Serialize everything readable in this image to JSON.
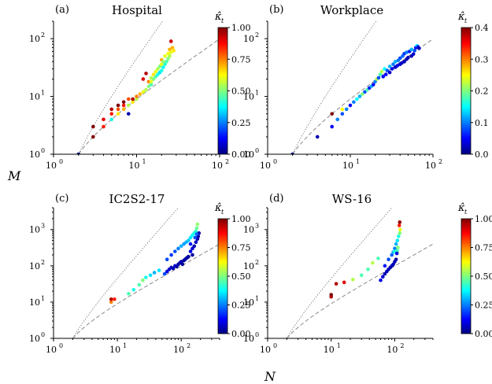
{
  "figure": {
    "xlabel": "N",
    "ylabel": "M",
    "colorbar_label": "κ̂",
    "colorbar_label_sub": "t",
    "colormap": [
      "#00007f",
      "#0000ff",
      "#007fff",
      "#00ffff",
      "#7fff7f",
      "#ffff00",
      "#ff7f00",
      "#ff0000",
      "#7f0000"
    ]
  },
  "chart_data": [
    {
      "type": "scatter",
      "panel": "(a)",
      "title": "Hospital",
      "xscale": "log",
      "yscale": "log",
      "xlim": [
        1,
        100
      ],
      "ylim": [
        1,
        200
      ],
      "x_ticks": [
        {
          "base": "10",
          "exp": "0",
          "v": 1
        },
        {
          "base": "10",
          "exp": "1",
          "v": 10
        },
        {
          "base": "10",
          "exp": "2",
          "v": 100
        }
      ],
      "y_ticks": [
        {
          "base": "10",
          "exp": "0",
          "v": 1
        },
        {
          "base": "10",
          "exp": "1",
          "v": 10
        },
        {
          "base": "10",
          "exp": "2",
          "v": 100
        }
      ],
      "colorbar": {
        "min": 0,
        "max": 1.0,
        "ticks": [
          "0.00",
          "0.25",
          "0.50",
          "0.75",
          "1.00"
        ],
        "tick_values": [
          0,
          0.25,
          0.5,
          0.75,
          1.0
        ]
      },
      "reference_lines": {
        "dotted": "M = N(N-1)/2",
        "dashed": "M = N - 1"
      },
      "points": [
        [
          2,
          1,
          0.0
        ],
        [
          3,
          2,
          1.0
        ],
        [
          3,
          3,
          1.0
        ],
        [
          4,
          3,
          0.85
        ],
        [
          4,
          4,
          0.9
        ],
        [
          5,
          4,
          0.4
        ],
        [
          5,
          5,
          0.85
        ],
        [
          5,
          6,
          0.95
        ],
        [
          6,
          5,
          0.65
        ],
        [
          6,
          6,
          0.8
        ],
        [
          6,
          7,
          1.0
        ],
        [
          7,
          6,
          0.7
        ],
        [
          7,
          7,
          0.85
        ],
        [
          7,
          8,
          1.0
        ],
        [
          8,
          5,
          0.05
        ],
        [
          8,
          7,
          0.55
        ],
        [
          8,
          9,
          0.8
        ],
        [
          9,
          8,
          0.65
        ],
        [
          9,
          9,
          0.95
        ],
        [
          10,
          9,
          0.55
        ],
        [
          10,
          10,
          0.75
        ],
        [
          11,
          11,
          0.7
        ],
        [
          12,
          12,
          0.6
        ],
        [
          12,
          20,
          0.9
        ],
        [
          13,
          13,
          0.55
        ],
        [
          13,
          25,
          0.95
        ],
        [
          14,
          15,
          0.5
        ],
        [
          14,
          18,
          0.75
        ],
        [
          15,
          16,
          0.45
        ],
        [
          15,
          18,
          0.6
        ],
        [
          15,
          21,
          0.55
        ],
        [
          16,
          20,
          0.5
        ],
        [
          16,
          24,
          0.65
        ],
        [
          17,
          22,
          0.45
        ],
        [
          17,
          27,
          0.6
        ],
        [
          18,
          24,
          0.4
        ],
        [
          18,
          30,
          0.55
        ],
        [
          19,
          26,
          0.35
        ],
        [
          19,
          33,
          0.5
        ],
        [
          20,
          28,
          0.4
        ],
        [
          20,
          36,
          0.6
        ],
        [
          20,
          43,
          0.7
        ],
        [
          21,
          32,
          0.38
        ],
        [
          21,
          40,
          0.52
        ],
        [
          22,
          36,
          0.42
        ],
        [
          22,
          50,
          0.6
        ],
        [
          23,
          40,
          0.45
        ],
        [
          24,
          45,
          0.5
        ],
        [
          24,
          55,
          0.62
        ],
        [
          25,
          50,
          0.55
        ],
        [
          25,
          65,
          0.7
        ],
        [
          26,
          58,
          0.6
        ],
        [
          27,
          70,
          0.7
        ],
        [
          26,
          90,
          0.92
        ],
        [
          28,
          62,
          0.65
        ]
      ]
    },
    {
      "type": "scatter",
      "panel": "(b)",
      "title": "Workplace",
      "xscale": "log",
      "yscale": "log",
      "xlim": [
        1,
        100
      ],
      "ylim": [
        1,
        200
      ],
      "x_ticks": [
        {
          "base": "10",
          "exp": "0",
          "v": 1
        },
        {
          "base": "10",
          "exp": "1",
          "v": 10
        },
        {
          "base": "10",
          "exp": "2",
          "v": 100
        }
      ],
      "y_ticks": [
        {
          "base": "10",
          "exp": "0",
          "v": 1
        },
        {
          "base": "10",
          "exp": "1",
          "v": 10
        },
        {
          "base": "10",
          "exp": "2",
          "v": 100
        }
      ],
      "colorbar": {
        "min": 0,
        "max": 0.4,
        "ticks": [
          "0.0",
          "0.1",
          "0.2",
          "0.3",
          "0.4"
        ],
        "tick_values": [
          0,
          0.1,
          0.2,
          0.3,
          0.4
        ]
      },
      "reference_lines": {
        "dotted": "M = N(N-1)/2",
        "dashed": "M = N - 1"
      },
      "points": [
        [
          2,
          1,
          0.0
        ],
        [
          4,
          2,
          0.02
        ],
        [
          6,
          3,
          0.05
        ],
        [
          6,
          5,
          0.4
        ],
        [
          7,
          4,
          0.1
        ],
        [
          8,
          5,
          0.08
        ],
        [
          8,
          6,
          0.25
        ],
        [
          9,
          6,
          0.1
        ],
        [
          10,
          7,
          0.05
        ],
        [
          11,
          8,
          0.1
        ],
        [
          12,
          9,
          0.15
        ],
        [
          13,
          10,
          0.12
        ],
        [
          14,
          11,
          0.2
        ],
        [
          15,
          12,
          0.08
        ],
        [
          16,
          13,
          0.18
        ],
        [
          17,
          14,
          0.06
        ],
        [
          18,
          15,
          0.12
        ],
        [
          19,
          16,
          0.05
        ],
        [
          20,
          18,
          0.1
        ],
        [
          21,
          20,
          0.22
        ],
        [
          22,
          21,
          0.08
        ],
        [
          23,
          24,
          0.18
        ],
        [
          24,
          27,
          0.22
        ],
        [
          25,
          22,
          0.05
        ],
        [
          26,
          30,
          0.15
        ],
        [
          27,
          24,
          0.05
        ],
        [
          28,
          28,
          0.08
        ],
        [
          30,
          26,
          0.03
        ],
        [
          30,
          33,
          0.12
        ],
        [
          32,
          30,
          0.04
        ],
        [
          33,
          36,
          0.1
        ],
        [
          35,
          32,
          0.03
        ],
        [
          35,
          40,
          0.12
        ],
        [
          37,
          34,
          0.04
        ],
        [
          38,
          42,
          0.1
        ],
        [
          40,
          36,
          0.03
        ],
        [
          40,
          46,
          0.08
        ],
        [
          42,
          38,
          0.03
        ],
        [
          43,
          50,
          0.09
        ],
        [
          45,
          40,
          0.02
        ],
        [
          45,
          55,
          0.07
        ],
        [
          48,
          44,
          0.02
        ],
        [
          48,
          58,
          0.1
        ],
        [
          50,
          47,
          0.02
        ],
        [
          52,
          60,
          0.06
        ],
        [
          55,
          50,
          0.02
        ],
        [
          55,
          65,
          0.12
        ],
        [
          58,
          54,
          0.03
        ],
        [
          60,
          62,
          0.08
        ],
        [
          62,
          70,
          0.05
        ],
        [
          64,
          75,
          0.14
        ],
        [
          66,
          72,
          0.04
        ],
        [
          68,
          68,
          0.02
        ]
      ]
    },
    {
      "type": "scatter",
      "panel": "(c)",
      "title": "IC2S2-17",
      "xscale": "log",
      "yscale": "log",
      "xlim": [
        1,
        400
      ],
      "ylim": [
        1,
        4000
      ],
      "x_ticks": [
        {
          "base": "10",
          "exp": "0",
          "v": 1
        },
        {
          "base": "10",
          "exp": "1",
          "v": 10
        },
        {
          "base": "10",
          "exp": "2",
          "v": 100
        }
      ],
      "y_ticks": [
        {
          "base": "10",
          "exp": "0",
          "v": 1
        },
        {
          "base": "10",
          "exp": "1",
          "v": 10
        },
        {
          "base": "10",
          "exp": "2",
          "v": 100
        },
        {
          "base": "10",
          "exp": "3",
          "v": 1000
        }
      ],
      "colorbar": {
        "min": 0,
        "max": 1.0,
        "ticks": [
          "0.00",
          "0.25",
          "0.50",
          "0.75",
          "1.00"
        ],
        "tick_values": [
          0,
          0.25,
          0.5,
          0.75,
          1.0
        ]
      },
      "reference_lines": {
        "dotted": "M = N(N-1)/2",
        "dashed": "M = N - 1"
      },
      "points": [
        [
          8,
          10,
          0.75
        ],
        [
          8,
          12,
          0.95
        ],
        [
          9,
          12,
          0.85
        ],
        [
          15,
          17,
          0.45
        ],
        [
          18,
          22,
          0.4
        ],
        [
          22,
          30,
          0.45
        ],
        [
          25,
          40,
          0.5
        ],
        [
          28,
          48,
          0.4
        ],
        [
          33,
          55,
          0.35
        ],
        [
          38,
          65,
          0.3
        ],
        [
          45,
          75,
          0.35
        ],
        [
          55,
          60,
          0.2
        ],
        [
          60,
          70,
          0.1
        ],
        [
          65,
          80,
          0.08
        ],
        [
          70,
          90,
          0.05
        ],
        [
          75,
          85,
          0.05
        ],
        [
          80,
          100,
          0.08
        ],
        [
          85,
          95,
          0.03
        ],
        [
          90,
          110,
          0.05
        ],
        [
          95,
          120,
          0.04
        ],
        [
          100,
          130,
          0.05
        ],
        [
          105,
          110,
          0.02
        ],
        [
          110,
          140,
          0.03
        ],
        [
          115,
          150,
          0.04
        ],
        [
          120,
          160,
          0.05
        ],
        [
          125,
          170,
          0.04
        ],
        [
          130,
          180,
          0.03
        ],
        [
          60,
          150,
          0.2
        ],
        [
          70,
          200,
          0.18
        ],
        [
          80,
          250,
          0.2
        ],
        [
          90,
          300,
          0.25
        ],
        [
          100,
          350,
          0.3
        ],
        [
          110,
          400,
          0.28
        ],
        [
          120,
          450,
          0.3
        ],
        [
          130,
          500,
          0.32
        ],
        [
          140,
          600,
          0.35
        ],
        [
          150,
          700,
          0.38
        ],
        [
          160,
          800,
          0.4
        ],
        [
          170,
          900,
          0.42
        ],
        [
          175,
          1100,
          0.48
        ],
        [
          180,
          1400,
          0.52
        ],
        [
          140,
          250,
          0.1
        ],
        [
          150,
          300,
          0.08
        ],
        [
          160,
          350,
          0.05
        ],
        [
          170,
          450,
          0.06
        ],
        [
          180,
          550,
          0.05
        ],
        [
          185,
          650,
          0.04
        ],
        [
          190,
          800,
          0.05
        ],
        [
          150,
          200,
          0.03
        ],
        [
          140,
          400,
          0.15
        ],
        [
          165,
          600,
          0.2
        ],
        [
          175,
          750,
          0.22
        ]
      ]
    },
    {
      "type": "scatter",
      "panel": "(d)",
      "title": "WS-16",
      "xscale": "log",
      "yscale": "log",
      "xlim": [
        1,
        400
      ],
      "ylim": [
        1,
        4000
      ],
      "x_ticks": [
        {
          "base": "10",
          "exp": "0",
          "v": 1
        },
        {
          "base": "10",
          "exp": "1",
          "v": 10
        },
        {
          "base": "10",
          "exp": "2",
          "v": 100
        }
      ],
      "y_ticks": [
        {
          "base": "10",
          "exp": "0",
          "v": 1
        },
        {
          "base": "10",
          "exp": "1",
          "v": 10
        },
        {
          "base": "10",
          "exp": "2",
          "v": 100
        },
        {
          "base": "10",
          "exp": "3",
          "v": 1000
        }
      ],
      "colorbar": {
        "min": 0,
        "max": 1.0,
        "ticks": [
          "0.00",
          "0.25",
          "0.50",
          "0.75",
          "1.00"
        ],
        "tick_values": [
          0,
          0.25,
          0.5,
          0.75,
          1.0
        ]
      },
      "reference_lines": {
        "dotted": "M = N(N-1)/2",
        "dashed": "M = N - 1"
      },
      "points": [
        [
          10,
          14,
          0.95
        ],
        [
          10,
          16,
          1.0
        ],
        [
          12,
          32,
          0.95
        ],
        [
          16,
          35,
          0.9
        ],
        [
          22,
          42,
          0.55
        ],
        [
          30,
          55,
          0.45
        ],
        [
          38,
          80,
          0.45
        ],
        [
          45,
          120,
          0.55
        ],
        [
          55,
          160,
          0.45
        ],
        [
          60,
          40,
          0.1
        ],
        [
          65,
          50,
          0.08
        ],
        [
          70,
          60,
          0.05
        ],
        [
          75,
          70,
          0.06
        ],
        [
          80,
          80,
          0.05
        ],
        [
          85,
          90,
          0.04
        ],
        [
          90,
          100,
          0.05
        ],
        [
          95,
          110,
          0.06
        ],
        [
          100,
          130,
          0.05
        ],
        [
          105,
          150,
          0.04
        ],
        [
          70,
          100,
          0.15
        ],
        [
          80,
          150,
          0.2
        ],
        [
          90,
          200,
          0.22
        ],
        [
          100,
          300,
          0.25
        ],
        [
          105,
          400,
          0.3
        ],
        [
          110,
          500,
          0.35
        ],
        [
          115,
          650,
          0.4
        ],
        [
          120,
          800,
          0.5
        ],
        [
          122,
          1000,
          0.6
        ],
        [
          118,
          1300,
          0.85
        ],
        [
          120,
          1600,
          0.98
        ],
        [
          95,
          240,
          0.3
        ],
        [
          100,
          250,
          0.4
        ],
        [
          110,
          260,
          0.45
        ],
        [
          112,
          320,
          0.5
        ],
        [
          108,
          220,
          0.1
        ]
      ]
    }
  ]
}
